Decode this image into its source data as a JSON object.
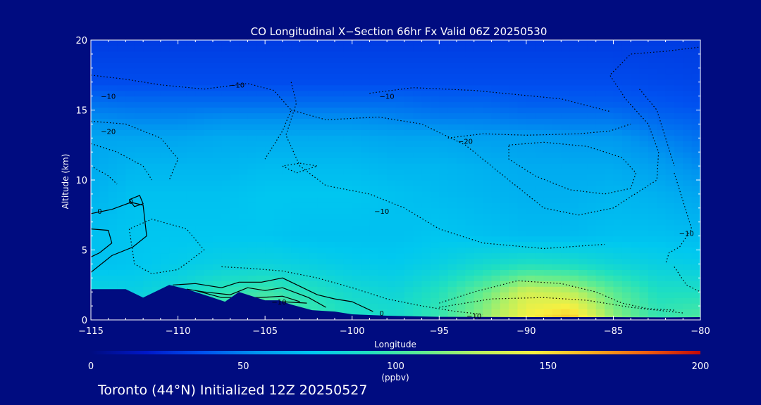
{
  "chart_data": {
    "type": "heatmap",
    "title": "CO Longitudinal X−Section 66hr  Fx Valid 06Z 20250530",
    "xlabel": "Longitude",
    "ylabel": "Altitude (km)",
    "xlim": [
      -115,
      -80
    ],
    "ylim": [
      0,
      20
    ],
    "x_ticks": [
      -115,
      -110,
      -105,
      -100,
      -95,
      -90,
      -85,
      -80
    ],
    "x_tick_labels": [
      "−115",
      "−110",
      "−105",
      "−100",
      "−95",
      "−90",
      "−85",
      "−80"
    ],
    "y_ticks": [
      0,
      5,
      10,
      15,
      20
    ],
    "y_tick_labels": [
      "0",
      "5",
      "10",
      "15",
      "20"
    ],
    "colorbar": {
      "min": 0,
      "max": 200,
      "ticks": [
        0,
        50,
        100,
        150,
        200
      ],
      "tick_labels": [
        "0",
        "50",
        "100",
        "150",
        "200"
      ],
      "unit": "(ppbv)",
      "colors": [
        "#000c80",
        "#0018c8",
        "#0050f0",
        "#0096f0",
        "#00c8f0",
        "#20e0c0",
        "#60ec90",
        "#b8f060",
        "#f8f040",
        "#f8b020",
        "#f06010",
        "#c00808"
      ]
    },
    "columns": [
      {
        "lon": -115,
        "profile": [
          [
            0,
            90
          ],
          [
            2,
            80
          ],
          [
            4,
            70
          ],
          [
            6,
            70
          ],
          [
            9,
            65
          ],
          [
            11,
            62
          ],
          [
            13,
            60
          ],
          [
            14.5,
            52
          ],
          [
            15.5,
            45
          ],
          [
            17,
            35
          ],
          [
            20,
            30
          ]
        ],
        "terrain_km": 2.2
      },
      {
        "lon": -112.5,
        "profile": [
          [
            0,
            85
          ],
          [
            2,
            78
          ],
          [
            4,
            72
          ],
          [
            6,
            72
          ],
          [
            9,
            70
          ],
          [
            11,
            66
          ],
          [
            13,
            60
          ],
          [
            14.5,
            50
          ],
          [
            15.5,
            44
          ],
          [
            17,
            35
          ],
          [
            20,
            30
          ]
        ],
        "terrain_km": 1.7
      },
      {
        "lon": -110,
        "profile": [
          [
            0,
            95
          ],
          [
            2,
            85
          ],
          [
            4,
            75
          ],
          [
            6,
            72
          ],
          [
            9,
            70
          ],
          [
            11,
            66
          ],
          [
            13,
            60
          ],
          [
            14.5,
            50
          ],
          [
            15.5,
            44
          ],
          [
            17,
            35
          ],
          [
            20,
            30
          ]
        ],
        "terrain_km": 2.5
      },
      {
        "lon": -107.5,
        "profile": [
          [
            0,
            100
          ],
          [
            2,
            95
          ],
          [
            4,
            78
          ],
          [
            6,
            72
          ],
          [
            9,
            70
          ],
          [
            11,
            66
          ],
          [
            13,
            62
          ],
          [
            14.5,
            52
          ],
          [
            15.5,
            44
          ],
          [
            17,
            35
          ],
          [
            20,
            30
          ]
        ],
        "terrain_km": 1.6
      },
      {
        "lon": -105,
        "profile": [
          [
            0,
            110
          ],
          [
            2,
            100
          ],
          [
            4,
            80
          ],
          [
            6,
            72
          ],
          [
            9,
            72
          ],
          [
            11,
            68
          ],
          [
            13,
            62
          ],
          [
            14.5,
            52
          ],
          [
            15.5,
            44
          ],
          [
            17,
            35
          ],
          [
            20,
            30
          ]
        ],
        "terrain_km": 1.4
      },
      {
        "lon": -102.5,
        "profile": [
          [
            0,
            100
          ],
          [
            2,
            92
          ],
          [
            4,
            78
          ],
          [
            6,
            70
          ],
          [
            9,
            72
          ],
          [
            11,
            68
          ],
          [
            13,
            62
          ],
          [
            14.5,
            52
          ],
          [
            15.5,
            44
          ],
          [
            17,
            35
          ],
          [
            20,
            30
          ]
        ],
        "terrain_km": 0.6
      },
      {
        "lon": -100,
        "profile": [
          [
            0,
            90
          ],
          [
            2,
            85
          ],
          [
            4,
            75
          ],
          [
            6,
            70
          ],
          [
            9,
            72
          ],
          [
            11,
            68
          ],
          [
            13,
            62
          ],
          [
            14.5,
            52
          ],
          [
            15.5,
            44
          ],
          [
            17,
            35
          ],
          [
            20,
            30
          ]
        ],
        "terrain_km": 0.3
      },
      {
        "lon": -97.5,
        "profile": [
          [
            0,
            88
          ],
          [
            2,
            82
          ],
          [
            4,
            74
          ],
          [
            6,
            70
          ],
          [
            9,
            70
          ],
          [
            11,
            66
          ],
          [
            13,
            60
          ],
          [
            14.5,
            50
          ],
          [
            15.5,
            44
          ],
          [
            17,
            35
          ],
          [
            20,
            30
          ]
        ],
        "terrain_km": 0.2
      },
      {
        "lon": -95,
        "profile": [
          [
            0,
            98
          ],
          [
            2,
            92
          ],
          [
            4,
            78
          ],
          [
            6,
            72
          ],
          [
            9,
            68
          ],
          [
            11,
            66
          ],
          [
            13,
            60
          ],
          [
            14.5,
            48
          ],
          [
            15.5,
            42
          ],
          [
            17,
            35
          ],
          [
            20,
            30
          ]
        ],
        "terrain_km": 0.2
      },
      {
        "lon": -92.5,
        "profile": [
          [
            0,
            120
          ],
          [
            2,
            110
          ],
          [
            4,
            85
          ],
          [
            6,
            70
          ],
          [
            9,
            66
          ],
          [
            11,
            64
          ],
          [
            13,
            58
          ],
          [
            14.5,
            48
          ],
          [
            15.5,
            42
          ],
          [
            17,
            35
          ],
          [
            20,
            30
          ]
        ],
        "terrain_km": 0.2
      },
      {
        "lon": -90,
        "profile": [
          [
            0,
            145
          ],
          [
            2,
            135
          ],
          [
            4,
            90
          ],
          [
            6,
            68
          ],
          [
            9,
            64
          ],
          [
            11,
            62
          ],
          [
            13,
            58
          ],
          [
            14.5,
            46
          ],
          [
            15.5,
            40
          ],
          [
            17,
            35
          ],
          [
            20,
            30
          ]
        ],
        "terrain_km": 0.2
      },
      {
        "lon": -87.5,
        "profile": [
          [
            0,
            160
          ],
          [
            2,
            130
          ],
          [
            4,
            88
          ],
          [
            6,
            68
          ],
          [
            9,
            64
          ],
          [
            11,
            62
          ],
          [
            13,
            56
          ],
          [
            14.5,
            46
          ],
          [
            15.5,
            40
          ],
          [
            17,
            35
          ],
          [
            20,
            30
          ]
        ],
        "terrain_km": 0.2
      },
      {
        "lon": -85,
        "profile": [
          [
            0,
            120
          ],
          [
            2,
            108
          ],
          [
            4,
            82
          ],
          [
            6,
            70
          ],
          [
            9,
            66
          ],
          [
            11,
            62
          ],
          [
            13,
            56
          ],
          [
            14.5,
            46
          ],
          [
            15.5,
            40
          ],
          [
            17,
            35
          ],
          [
            20,
            30
          ]
        ],
        "terrain_km": 0.2
      },
      {
        "lon": -82.5,
        "profile": [
          [
            0,
            98
          ],
          [
            2,
            90
          ],
          [
            4,
            78
          ],
          [
            6,
            70
          ],
          [
            9,
            64
          ],
          [
            11,
            58
          ],
          [
            13,
            50
          ],
          [
            14.5,
            42
          ],
          [
            15.5,
            38
          ],
          [
            17,
            34
          ],
          [
            20,
            30
          ]
        ],
        "terrain_km": 0.2
      },
      {
        "lon": -80,
        "profile": [
          [
            0,
            105
          ],
          [
            2,
            90
          ],
          [
            4,
            76
          ],
          [
            6,
            68
          ],
          [
            9,
            60
          ],
          [
            11,
            52
          ],
          [
            13,
            45
          ],
          [
            14.5,
            40
          ],
          [
            15.5,
            36
          ],
          [
            17,
            33
          ],
          [
            20,
            30
          ]
        ],
        "terrain_km": 0.2
      }
    ],
    "contour_labels": [
      {
        "text": "−10",
        "lon": -114,
        "alt": 16
      },
      {
        "text": "−20",
        "lon": -114,
        "alt": 13.5
      },
      {
        "text": "0",
        "lon": -114.5,
        "alt": 7.8
      },
      {
        "text": "0",
        "lon": -112.7,
        "alt": 8.5
      },
      {
        "text": "−10",
        "lon": -106.6,
        "alt": 16.8
      },
      {
        "text": "−10",
        "lon": -98,
        "alt": 16
      },
      {
        "text": "−20",
        "lon": -93.5,
        "alt": 12.8
      },
      {
        "text": "−10",
        "lon": -98.3,
        "alt": 7.8
      },
      {
        "text": "−10",
        "lon": -104.2,
        "alt": 1.3
      },
      {
        "text": "0",
        "lon": -98.3,
        "alt": 0.5
      },
      {
        "text": "−10",
        "lon": -93,
        "alt": 0.3
      },
      {
        "text": "−10",
        "lon": -80.8,
        "alt": 6.2
      }
    ]
  },
  "footer": {
    "unit": "(ppbv)",
    "location": "Toronto (44°N) Initialized 12Z 20250527"
  }
}
